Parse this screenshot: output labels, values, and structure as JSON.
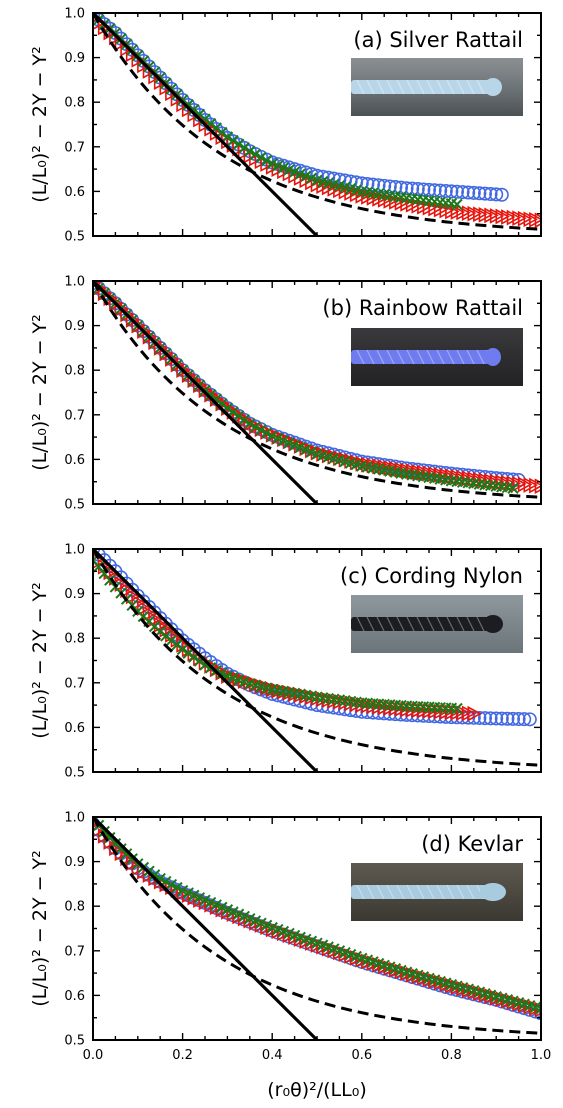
{
  "figure": {
    "xlabel": "(r₀θ)²/(LL₀)",
    "ylabel": "(L/L₀)² − 2Y − Y²",
    "colors": {
      "circle": "#4169e1",
      "triangle": "#e8140c",
      "cross": "#1a7a1a",
      "solid": "#000000",
      "dashed": "#000000"
    }
  },
  "chart_data": [
    {
      "type": "scatter",
      "title": "(a) Silver Rattail",
      "photo": "silver-rattail-photo",
      "xlim": [
        0,
        1
      ],
      "ylim": [
        0.5,
        1.0
      ],
      "xticks": [
        "0.0",
        "0.2",
        "0.4",
        "0.6",
        "0.8",
        "1.0"
      ],
      "yticks": [
        "0.5",
        "0.6",
        "0.7",
        "0.8",
        "0.9",
        "1.0"
      ],
      "series": [
        {
          "marker": "circle",
          "color": "#4169e1",
          "x_end": 0.92,
          "curve": [
            [
              0,
              0.995
            ],
            [
              0.05,
              0.955
            ],
            [
              0.1,
              0.905
            ],
            [
              0.15,
              0.855
            ],
            [
              0.2,
              0.805
            ],
            [
              0.25,
              0.76
            ],
            [
              0.3,
              0.72
            ],
            [
              0.35,
              0.69
            ],
            [
              0.4,
              0.665
            ],
            [
              0.5,
              0.635
            ],
            [
              0.6,
              0.618
            ],
            [
              0.7,
              0.607
            ],
            [
              0.8,
              0.6
            ],
            [
              0.92,
              0.592
            ]
          ]
        },
        {
          "marker": "triangle",
          "color": "#e8140c",
          "x_end": 1.0,
          "curve": [
            [
              0,
              0.99
            ],
            [
              0.05,
              0.945
            ],
            [
              0.1,
              0.895
            ],
            [
              0.15,
              0.845
            ],
            [
              0.2,
              0.795
            ],
            [
              0.25,
              0.75
            ],
            [
              0.3,
              0.712
            ],
            [
              0.35,
              0.68
            ],
            [
              0.4,
              0.655
            ],
            [
              0.5,
              0.615
            ],
            [
              0.6,
              0.59
            ],
            [
              0.7,
              0.572
            ],
            [
              0.8,
              0.555
            ],
            [
              0.9,
              0.545
            ],
            [
              1.0,
              0.535
            ]
          ]
        },
        {
          "marker": "cross",
          "color": "#1a7a1a",
          "x_end": 0.82,
          "curve": [
            [
              0,
              0.995
            ],
            [
              0.05,
              0.955
            ],
            [
              0.1,
              0.905
            ],
            [
              0.15,
              0.855
            ],
            [
              0.2,
              0.805
            ],
            [
              0.25,
              0.762
            ],
            [
              0.3,
              0.722
            ],
            [
              0.35,
              0.69
            ],
            [
              0.4,
              0.662
            ],
            [
              0.5,
              0.625
            ],
            [
              0.6,
              0.6
            ],
            [
              0.7,
              0.585
            ],
            [
              0.82,
              0.57
            ]
          ]
        }
      ]
    },
    {
      "type": "scatter",
      "title": "(b) Rainbow Rattail",
      "photo": "rainbow-rattail-photo",
      "xlim": [
        0,
        1
      ],
      "ylim": [
        0.5,
        1.0
      ],
      "xticks": [
        "0.0",
        "0.2",
        "0.4",
        "0.6",
        "0.8",
        "1.0"
      ],
      "yticks": [
        "0.5",
        "0.6",
        "0.7",
        "0.8",
        "0.9",
        "1.0"
      ],
      "series": [
        {
          "marker": "circle",
          "color": "#4169e1",
          "x_end": 0.96,
          "curve": [
            [
              0,
              0.995
            ],
            [
              0.05,
              0.95
            ],
            [
              0.1,
              0.9
            ],
            [
              0.15,
              0.85
            ],
            [
              0.2,
              0.8
            ],
            [
              0.25,
              0.755
            ],
            [
              0.3,
              0.715
            ],
            [
              0.35,
              0.68
            ],
            [
              0.4,
              0.655
            ],
            [
              0.5,
              0.62
            ],
            [
              0.6,
              0.595
            ],
            [
              0.7,
              0.58
            ],
            [
              0.8,
              0.568
            ],
            [
              0.9,
              0.558
            ],
            [
              0.96,
              0.553
            ]
          ]
        },
        {
          "marker": "triangle",
          "color": "#e8140c",
          "x_end": 1.0,
          "curve": [
            [
              0,
              0.995
            ],
            [
              0.05,
              0.95
            ],
            [
              0.1,
              0.9
            ],
            [
              0.15,
              0.85
            ],
            [
              0.2,
              0.8
            ],
            [
              0.25,
              0.755
            ],
            [
              0.3,
              0.715
            ],
            [
              0.35,
              0.68
            ],
            [
              0.4,
              0.655
            ],
            [
              0.5,
              0.615
            ],
            [
              0.6,
              0.59
            ],
            [
              0.7,
              0.575
            ],
            [
              0.8,
              0.562
            ],
            [
              0.9,
              0.55
            ],
            [
              1.0,
              0.54
            ]
          ]
        },
        {
          "marker": "cross",
          "color": "#1a7a1a",
          "x_end": 0.94,
          "curve": [
            [
              0,
              0.995
            ],
            [
              0.05,
              0.95
            ],
            [
              0.1,
              0.9
            ],
            [
              0.15,
              0.85
            ],
            [
              0.2,
              0.8
            ],
            [
              0.25,
              0.755
            ],
            [
              0.3,
              0.715
            ],
            [
              0.35,
              0.68
            ],
            [
              0.4,
              0.652
            ],
            [
              0.5,
              0.612
            ],
            [
              0.6,
              0.585
            ],
            [
              0.7,
              0.567
            ],
            [
              0.8,
              0.552
            ],
            [
              0.94,
              0.535
            ]
          ]
        }
      ]
    },
    {
      "type": "scatter",
      "title": "(c) Cording Nylon",
      "photo": "cording-nylon-photo",
      "xlim": [
        0,
        1
      ],
      "ylim": [
        0.5,
        1.0
      ],
      "xticks": [
        "0.0",
        "0.2",
        "0.4",
        "0.6",
        "0.8",
        "1.0"
      ],
      "yticks": [
        "0.5",
        "0.6",
        "0.7",
        "0.8",
        "0.9",
        "1.0"
      ],
      "series": [
        {
          "marker": "circle",
          "color": "#4169e1",
          "x_end": 0.98,
          "curve": [
            [
              0,
              1.0
            ],
            [
              0.05,
              0.95
            ],
            [
              0.1,
              0.895
            ],
            [
              0.15,
              0.845
            ],
            [
              0.2,
              0.795
            ],
            [
              0.25,
              0.755
            ],
            [
              0.3,
              0.72
            ],
            [
              0.35,
              0.695
            ],
            [
              0.4,
              0.675
            ],
            [
              0.5,
              0.65
            ],
            [
              0.6,
              0.635
            ],
            [
              0.7,
              0.628
            ],
            [
              0.8,
              0.623
            ],
            [
              0.9,
              0.62
            ],
            [
              0.98,
              0.618
            ]
          ]
        },
        {
          "marker": "triangle",
          "color": "#e8140c",
          "x_end": 0.86,
          "curve": [
            [
              0,
              0.985
            ],
            [
              0.05,
              0.935
            ],
            [
              0.1,
              0.88
            ],
            [
              0.15,
              0.83
            ],
            [
              0.2,
              0.785
            ],
            [
              0.25,
              0.745
            ],
            [
              0.3,
              0.715
            ],
            [
              0.35,
              0.7
            ],
            [
              0.4,
              0.685
            ],
            [
              0.5,
              0.665
            ],
            [
              0.6,
              0.65
            ],
            [
              0.7,
              0.64
            ],
            [
              0.86,
              0.63
            ]
          ]
        },
        {
          "marker": "cross",
          "color": "#1a7a1a",
          "x_end": 0.82,
          "curve": [
            [
              0,
              0.975
            ],
            [
              0.05,
              0.915
            ],
            [
              0.1,
              0.86
            ],
            [
              0.15,
              0.815
            ],
            [
              0.2,
              0.775
            ],
            [
              0.25,
              0.74
            ],
            [
              0.3,
              0.715
            ],
            [
              0.35,
              0.698
            ],
            [
              0.4,
              0.685
            ],
            [
              0.5,
              0.668
            ],
            [
              0.6,
              0.655
            ],
            [
              0.7,
              0.648
            ],
            [
              0.82,
              0.642
            ]
          ]
        }
      ]
    },
    {
      "type": "scatter",
      "title": "(d) Kevlar",
      "photo": "kevlar-photo",
      "xlim": [
        0,
        1
      ],
      "ylim": [
        0.5,
        1.0
      ],
      "xticks": [
        "0.0",
        "0.2",
        "0.4",
        "0.6",
        "0.8",
        "1.0"
      ],
      "yticks": [
        "0.5",
        "0.6",
        "0.7",
        "0.8",
        "0.9",
        "1.0"
      ],
      "series": [
        {
          "marker": "circle",
          "color": "#4169e1",
          "x_end": 1.0,
          "curve": [
            [
              0,
              0.985
            ],
            [
              0.05,
              0.93
            ],
            [
              0.1,
              0.885
            ],
            [
              0.15,
              0.855
            ],
            [
              0.2,
              0.83
            ],
            [
              0.3,
              0.785
            ],
            [
              0.4,
              0.745
            ],
            [
              0.5,
              0.71
            ],
            [
              0.6,
              0.675
            ],
            [
              0.7,
              0.645
            ],
            [
              0.8,
              0.615
            ],
            [
              0.9,
              0.59
            ],
            [
              1.0,
              0.56
            ]
          ]
        },
        {
          "marker": "triangle",
          "color": "#e8140c",
          "x_end": 1.0,
          "curve": [
            [
              0,
              0.985
            ],
            [
              0.05,
              0.93
            ],
            [
              0.1,
              0.885
            ],
            [
              0.15,
              0.855
            ],
            [
              0.2,
              0.83
            ],
            [
              0.3,
              0.787
            ],
            [
              0.4,
              0.748
            ],
            [
              0.5,
              0.713
            ],
            [
              0.6,
              0.68
            ],
            [
              0.7,
              0.65
            ],
            [
              0.8,
              0.622
            ],
            [
              0.9,
              0.595
            ],
            [
              1.0,
              0.568
            ]
          ]
        },
        {
          "marker": "cross",
          "color": "#1a7a1a",
          "x_end": 1.0,
          "curve": [
            [
              0,
              0.995
            ],
            [
              0.05,
              0.94
            ],
            [
              0.1,
              0.895
            ],
            [
              0.15,
              0.862
            ],
            [
              0.2,
              0.835
            ],
            [
              0.3,
              0.792
            ],
            [
              0.4,
              0.752
            ],
            [
              0.5,
              0.717
            ],
            [
              0.6,
              0.683
            ],
            [
              0.7,
              0.652
            ],
            [
              0.8,
              0.624
            ],
            [
              0.9,
              0.597
            ],
            [
              1.0,
              0.57
            ]
          ]
        }
      ]
    }
  ]
}
